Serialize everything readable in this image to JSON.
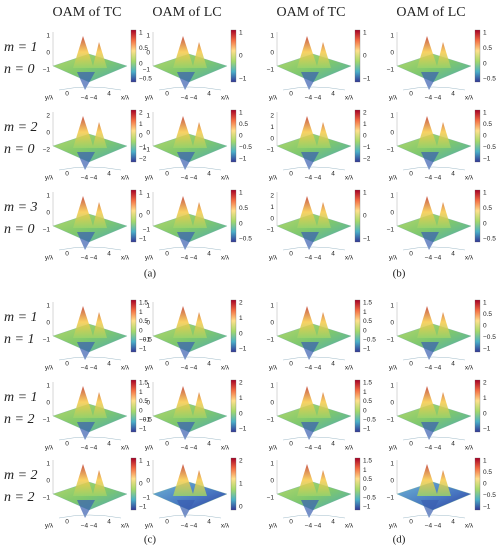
{
  "figure": {
    "panels": [
      {
        "label": "(a)",
        "headers": [
          "OAM of TC",
          "OAM of LC"
        ],
        "rows": [
          {
            "m": "m = 1",
            "n": "n = 0",
            "plots": [
              {
                "zticks": [
                  "1",
                  "0",
                  "−1"
                ],
                "cbar": [
                  "1",
                  "0.5",
                  "0",
                  "−0.5"
                ],
                "bottom": [
                  "y/λ",
                  "0",
                  "−4 −4",
                  "4",
                  "x/λ"
                ]
              },
              {
                "zticks": [
                  "1",
                  "0",
                  "−1"
                ],
                "cbar": [
                  "1",
                  "0",
                  "−1"
                ],
                "bottom": [
                  "y/λ",
                  "0",
                  "−4 −4",
                  "4",
                  "x/λ"
                ]
              }
            ]
          },
          {
            "m": "m = 2",
            "n": "n = 0",
            "plots": [
              {
                "zticks": [
                  "2",
                  "0",
                  "−2"
                ],
                "cbar": [
                  "2",
                  "1",
                  "0",
                  "−1",
                  "−2"
                ],
                "bottom": [
                  "y/λ",
                  "0",
                  "−4 −4",
                  "4",
                  "x/λ"
                ]
              },
              {
                "zticks": [
                  "1",
                  "0",
                  "−1"
                ],
                "cbar": [
                  "1",
                  "0.5",
                  "0",
                  "−0.5",
                  "−1"
                ],
                "bottom": [
                  "y/λ",
                  "0",
                  "−4 −4",
                  "4",
                  "x/λ"
                ]
              }
            ]
          },
          {
            "m": "m = 3",
            "n": "n = 0",
            "plots": [
              {
                "zticks": [
                  "1",
                  "0",
                  "−1"
                ],
                "cbar": [
                  "1",
                  "0",
                  "−1"
                ],
                "bottom": [
                  "y/λ",
                  "0",
                  "−4 −4",
                  "4",
                  "x/λ"
                ]
              },
              {
                "zticks": [
                  "1",
                  "0",
                  "−1"
                ],
                "cbar": [
                  "1",
                  "0.5",
                  "0",
                  "−0.5"
                ],
                "bottom": [
                  "y/λ",
                  "0",
                  "−4 −4",
                  "4",
                  "x/λ"
                ]
              }
            ]
          }
        ]
      },
      {
        "label": "(b)",
        "headers": [
          "OAM of TC",
          "OAM of LC"
        ],
        "rows": [
          {
            "plots": [
              {
                "zticks": [
                  "1",
                  "0",
                  "−1"
                ],
                "cbar": [
                  "1",
                  "0",
                  "−1"
                ],
                "bottom": [
                  "y/λ",
                  "0",
                  "−4 −4",
                  "4",
                  "x/λ"
                ]
              },
              {
                "zticks": [
                  "1",
                  "0",
                  "−1"
                ],
                "cbar": [
                  "1",
                  "0.5",
                  "0",
                  "−0.5"
                ],
                "bottom": [
                  "y/λ",
                  "0",
                  "−4 −4",
                  "4",
                  "x/λ"
                ]
              }
            ]
          },
          {
            "plots": [
              {
                "zticks": [
                  "2",
                  "1",
                  "0",
                  "−1"
                ],
                "cbar": [
                  "2",
                  "1",
                  "0",
                  "−1",
                  "−2"
                ],
                "bottom": [
                  "y/λ",
                  "0",
                  "−4 −4",
                  "4",
                  "x/λ"
                ]
              },
              {
                "zticks": [
                  "1",
                  "0",
                  "−1"
                ],
                "cbar": [
                  "1",
                  "0.5",
                  "0",
                  "−0.5",
                  "−1"
                ],
                "bottom": [
                  "y/λ",
                  "0",
                  "−4 −4",
                  "4",
                  "x/λ"
                ]
              }
            ]
          },
          {
            "plots": [
              {
                "zticks": [
                  "2",
                  "1",
                  "0",
                  "−1"
                ],
                "cbar": [
                  "1",
                  "0",
                  "−1"
                ],
                "bottom": [
                  "y/λ",
                  "0",
                  "−4 −4",
                  "4",
                  "x/λ"
                ]
              },
              {
                "zticks": [
                  "1",
                  "0",
                  "−1"
                ],
                "cbar": [
                  "1",
                  "0.5",
                  "0",
                  "−0.5"
                ],
                "bottom": [
                  "y/λ",
                  "0",
                  "−4 −4",
                  "4",
                  "x/λ"
                ]
              }
            ]
          }
        ]
      },
      {
        "label": "(c)",
        "rows": [
          {
            "m": "m = 1",
            "n": "n = 1",
            "plots": [
              {
                "zticks": [
                  "1",
                  "0",
                  "−1"
                ],
                "cbar": [
                  "1.5",
                  "1",
                  "0.5",
                  "0",
                  "−0.5",
                  "−1"
                ],
                "bottom": [
                  "y/λ",
                  "0",
                  "−4 −4",
                  "4",
                  "x/λ"
                ]
              },
              {
                "zticks": [
                  "1",
                  "0",
                  "−1"
                ],
                "cbar": [
                  "2",
                  "1",
                  "0",
                  "−1"
                ],
                "bottom": [
                  "y/λ",
                  "0",
                  "−4 −4",
                  "4",
                  "x/λ"
                ]
              }
            ]
          },
          {
            "m": "m = 1",
            "n": "n = 2",
            "plots": [
              {
                "zticks": [
                  "1",
                  "0",
                  "−1"
                ],
                "cbar": [
                  "1.5",
                  "1",
                  "0.5",
                  "0",
                  "−0.5",
                  "−1"
                ],
                "bottom": [
                  "y/λ",
                  "0",
                  "−4 −4",
                  "4",
                  "x/λ"
                ]
              },
              {
                "zticks": [
                  "1",
                  "0",
                  "−1"
                ],
                "cbar": [
                  "2",
                  "1",
                  "0",
                  "−1"
                ],
                "bottom": [
                  "y/λ",
                  "0",
                  "−4 −4",
                  "4",
                  "x/λ"
                ]
              }
            ]
          },
          {
            "m": "m = 2",
            "n": "n = 2",
            "plots": [
              {
                "zticks": [
                  "1",
                  "0",
                  "−1"
                ],
                "cbar": [
                  "1",
                  "0",
                  "−1"
                ],
                "bottom": [
                  "y/λ",
                  "0",
                  "−4 −4",
                  "4",
                  "x/λ"
                ]
              },
              {
                "zticks": [
                  "1",
                  "0",
                  "−1"
                ],
                "cbar": [
                  "2",
                  "1",
                  "0"
                ],
                "bottom": [
                  "y/λ",
                  "0",
                  "−4 −4",
                  "4",
                  "x/λ"
                ]
              }
            ]
          }
        ]
      },
      {
        "label": "(d)",
        "rows": [
          {
            "plots": [
              {
                "zticks": [
                  "1",
                  "0",
                  "−1"
                ],
                "cbar": [
                  "1.5",
                  "1",
                  "0.5",
                  "0",
                  "−0.5",
                  "−1"
                ],
                "bottom": [
                  "y/λ",
                  "0",
                  "−4 −4",
                  "4",
                  "x/λ"
                ]
              },
              {
                "zticks": [
                  "1",
                  "0",
                  "−1"
                ],
                "cbar": [
                  "1",
                  "0.5",
                  "0",
                  "−0.5",
                  "−1"
                ],
                "bottom": [
                  "y/λ",
                  "0",
                  "−4 −4",
                  "4",
                  "x/λ"
                ]
              }
            ]
          },
          {
            "plots": [
              {
                "zticks": [
                  "1",
                  "0",
                  "−1"
                ],
                "cbar": [
                  "1.5",
                  "1",
                  "0.5",
                  "0",
                  "−0.5",
                  "−1"
                ],
                "bottom": [
                  "y/λ",
                  "0",
                  "−4 −4",
                  "4",
                  "x/λ"
                ]
              },
              {
                "zticks": [
                  "1",
                  "0",
                  "−1"
                ],
                "cbar": [
                  "2",
                  "1",
                  "0",
                  "−1"
                ],
                "bottom": [
                  "y/λ",
                  "0",
                  "−4 −4",
                  "4",
                  "x/λ"
                ]
              }
            ]
          },
          {
            "plots": [
              {
                "zticks": [
                  "1",
                  "0",
                  "−1"
                ],
                "cbar": [
                  "1.5",
                  "1",
                  "0.5",
                  "0",
                  "−0.5",
                  "−1"
                ],
                "bottom": [
                  "y/λ",
                  "0",
                  "−4 −4",
                  "4",
                  "x/λ"
                ]
              },
              {
                "zticks": [
                  "1",
                  "0",
                  "−1"
                ],
                "cbar": [
                  "1",
                  "0.5",
                  "0",
                  "−0.5",
                  "−1"
                ],
                "bottom": [
                  "y/λ",
                  "0",
                  "−4 −4",
                  "4",
                  "x/λ"
                ]
              }
            ]
          }
        ]
      }
    ]
  }
}
